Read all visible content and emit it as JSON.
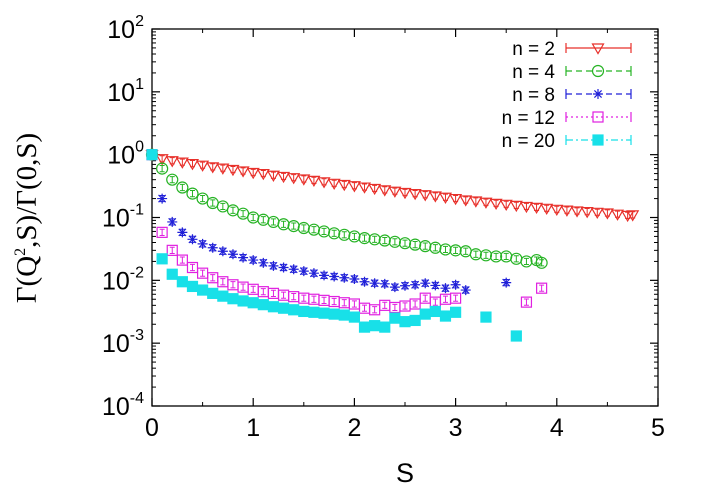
{
  "chart_data": {
    "type": "scatter",
    "title": "",
    "xlabel": "S",
    "ylabel": {
      "base": "Γ(Q",
      "sup": "2",
      "rest": ",S)/Γ(0,S)"
    },
    "xlim": [
      0,
      5
    ],
    "ylim_log10": [
      -4,
      2
    ],
    "yscale": "log",
    "grid": false,
    "legend_position": "top-right",
    "x_ticks": [
      "0",
      "1",
      "2",
      "3",
      "4",
      "5"
    ],
    "y_ticks": [
      {
        "exp": -4,
        "base": "10",
        "sup": "-4"
      },
      {
        "exp": -3,
        "base": "10",
        "sup": "-3"
      },
      {
        "exp": -2,
        "base": "10",
        "sup": "-2"
      },
      {
        "exp": -1,
        "base": "10",
        "sup": "-1"
      },
      {
        "exp": 0,
        "base": "10",
        "sup": "0"
      },
      {
        "exp": 1,
        "base": "10",
        "sup": "1"
      },
      {
        "exp": 2,
        "base": "10",
        "sup": "2"
      }
    ],
    "series": [
      {
        "name": "n = 2",
        "color": "#e8302a",
        "marker": "triangle-down",
        "line": "solid",
        "points": [
          [
            0.0,
            1.0
          ],
          [
            0.1,
            0.86
          ],
          [
            0.2,
            0.8
          ],
          [
            0.3,
            0.76
          ],
          [
            0.4,
            0.72
          ],
          [
            0.5,
            0.68
          ],
          [
            0.6,
            0.64
          ],
          [
            0.7,
            0.61
          ],
          [
            0.8,
            0.58
          ],
          [
            0.9,
            0.55
          ],
          [
            1.0,
            0.52
          ],
          [
            1.1,
            0.5
          ],
          [
            1.2,
            0.47
          ],
          [
            1.3,
            0.45
          ],
          [
            1.4,
            0.43
          ],
          [
            1.5,
            0.41
          ],
          [
            1.6,
            0.39
          ],
          [
            1.7,
            0.37
          ],
          [
            1.8,
            0.35
          ],
          [
            1.9,
            0.335
          ],
          [
            2.0,
            0.32
          ],
          [
            2.1,
            0.305
          ],
          [
            2.2,
            0.29
          ],
          [
            2.3,
            0.275
          ],
          [
            2.4,
            0.262
          ],
          [
            2.5,
            0.25
          ],
          [
            2.6,
            0.24
          ],
          [
            2.7,
            0.23
          ],
          [
            2.8,
            0.22
          ],
          [
            2.9,
            0.21
          ],
          [
            3.0,
            0.2
          ],
          [
            3.1,
            0.19
          ],
          [
            3.2,
            0.183
          ],
          [
            3.3,
            0.175
          ],
          [
            3.4,
            0.168
          ],
          [
            3.5,
            0.162
          ],
          [
            3.6,
            0.156
          ],
          [
            3.7,
            0.15
          ],
          [
            3.8,
            0.145
          ],
          [
            3.9,
            0.14
          ],
          [
            4.0,
            0.135
          ],
          [
            4.1,
            0.131
          ],
          [
            4.2,
            0.127
          ],
          [
            4.3,
            0.124
          ],
          [
            4.4,
            0.121
          ],
          [
            4.5,
            0.118
          ],
          [
            4.6,
            0.113
          ],
          [
            4.7,
            0.108
          ],
          [
            4.75,
            0.11
          ]
        ]
      },
      {
        "name": "n = 4",
        "color": "#26b324",
        "marker": "circle",
        "line": "dashed",
        "points": [
          [
            0.0,
            1.0
          ],
          [
            0.1,
            0.6
          ],
          [
            0.2,
            0.4
          ],
          [
            0.3,
            0.3
          ],
          [
            0.4,
            0.24
          ],
          [
            0.5,
            0.2
          ],
          [
            0.6,
            0.17
          ],
          [
            0.7,
            0.15
          ],
          [
            0.8,
            0.13
          ],
          [
            0.9,
            0.115
          ],
          [
            1.0,
            0.1
          ],
          [
            1.1,
            0.092
          ],
          [
            1.2,
            0.085
          ],
          [
            1.3,
            0.078
          ],
          [
            1.4,
            0.073
          ],
          [
            1.5,
            0.068
          ],
          [
            1.6,
            0.064
          ],
          [
            1.7,
            0.06
          ],
          [
            1.8,
            0.056
          ],
          [
            1.9,
            0.053
          ],
          [
            2.0,
            0.05
          ],
          [
            2.1,
            0.047
          ],
          [
            2.2,
            0.045
          ],
          [
            2.3,
            0.043
          ],
          [
            2.4,
            0.041
          ],
          [
            2.5,
            0.039
          ],
          [
            2.6,
            0.037
          ],
          [
            2.7,
            0.035
          ],
          [
            2.8,
            0.033
          ],
          [
            2.9,
            0.031
          ],
          [
            3.0,
            0.03
          ],
          [
            3.1,
            0.029
          ],
          [
            3.2,
            0.026
          ],
          [
            3.3,
            0.025
          ],
          [
            3.4,
            0.024
          ],
          [
            3.5,
            0.024
          ],
          [
            3.6,
            0.022
          ],
          [
            3.7,
            0.02
          ],
          [
            3.8,
            0.021
          ],
          [
            3.85,
            0.019
          ]
        ]
      },
      {
        "name": "n = 8",
        "color": "#2020d8",
        "marker": "asterisk",
        "line": "dashed",
        "points": [
          [
            0.0,
            1.0
          ],
          [
            0.1,
            0.2
          ],
          [
            0.2,
            0.085
          ],
          [
            0.3,
            0.058
          ],
          [
            0.4,
            0.045
          ],
          [
            0.5,
            0.038
          ],
          [
            0.6,
            0.033
          ],
          [
            0.7,
            0.029
          ],
          [
            0.8,
            0.026
          ],
          [
            0.9,
            0.023
          ],
          [
            1.0,
            0.021
          ],
          [
            1.1,
            0.019
          ],
          [
            1.2,
            0.017
          ],
          [
            1.3,
            0.016
          ],
          [
            1.4,
            0.015
          ],
          [
            1.5,
            0.014
          ],
          [
            1.6,
            0.013
          ],
          [
            1.7,
            0.012
          ],
          [
            1.8,
            0.0115
          ],
          [
            1.9,
            0.011
          ],
          [
            2.0,
            0.0105
          ],
          [
            2.1,
            0.0095
          ],
          [
            2.2,
            0.009
          ],
          [
            2.3,
            0.0088
          ],
          [
            2.4,
            0.0078
          ],
          [
            2.5,
            0.0082
          ],
          [
            2.6,
            0.0085
          ],
          [
            2.7,
            0.009
          ],
          [
            2.8,
            0.0083
          ],
          [
            2.9,
            0.0075
          ],
          [
            3.0,
            0.0085
          ],
          [
            3.1,
            0.007
          ],
          [
            3.5,
            0.0092
          ]
        ]
      },
      {
        "name": "n = 12",
        "color": "#e020e0",
        "marker": "square",
        "line": "dotted",
        "points": [
          [
            0.0,
            1.0
          ],
          [
            0.1,
            0.058
          ],
          [
            0.2,
            0.03
          ],
          [
            0.3,
            0.021
          ],
          [
            0.4,
            0.016
          ],
          [
            0.5,
            0.013
          ],
          [
            0.6,
            0.011
          ],
          [
            0.7,
            0.0095
          ],
          [
            0.8,
            0.0085
          ],
          [
            0.9,
            0.0078
          ],
          [
            1.0,
            0.0072
          ],
          [
            1.1,
            0.0066
          ],
          [
            1.2,
            0.0062
          ],
          [
            1.3,
            0.0058
          ],
          [
            1.4,
            0.0055
          ],
          [
            1.5,
            0.0052
          ],
          [
            1.6,
            0.005
          ],
          [
            1.7,
            0.0048
          ],
          [
            1.8,
            0.0046
          ],
          [
            1.9,
            0.0044
          ],
          [
            2.0,
            0.0042
          ],
          [
            2.1,
            0.0036
          ],
          [
            2.2,
            0.0034
          ],
          [
            2.3,
            0.004
          ],
          [
            2.4,
            0.0037
          ],
          [
            2.5,
            0.0039
          ],
          [
            2.6,
            0.0042
          ],
          [
            2.7,
            0.0052
          ],
          [
            2.8,
            0.0045
          ],
          [
            2.9,
            0.005
          ],
          [
            3.0,
            0.0052
          ],
          [
            3.7,
            0.0045
          ],
          [
            3.85,
            0.0075
          ]
        ]
      },
      {
        "name": "n = 20",
        "color": "#18e0e8",
        "marker": "filled-square",
        "line": "dashdot",
        "points": [
          [
            0.0,
            1.0
          ],
          [
            0.1,
            0.022
          ],
          [
            0.2,
            0.0125
          ],
          [
            0.3,
            0.0095
          ],
          [
            0.4,
            0.008
          ],
          [
            0.5,
            0.007
          ],
          [
            0.6,
            0.0062
          ],
          [
            0.7,
            0.0056
          ],
          [
            0.8,
            0.0051
          ],
          [
            0.9,
            0.0047
          ],
          [
            1.0,
            0.0044
          ],
          [
            1.1,
            0.0041
          ],
          [
            1.2,
            0.0038
          ],
          [
            1.3,
            0.0036
          ],
          [
            1.4,
            0.0034
          ],
          [
            1.5,
            0.0032
          ],
          [
            1.6,
            0.0031
          ],
          [
            1.7,
            0.003
          ],
          [
            1.8,
            0.0029
          ],
          [
            1.9,
            0.0028
          ],
          [
            2.0,
            0.0026
          ],
          [
            2.1,
            0.0018
          ],
          [
            2.2,
            0.0019
          ],
          [
            2.3,
            0.0018
          ],
          [
            2.4,
            0.0025
          ],
          [
            2.5,
            0.0022
          ],
          [
            2.6,
            0.0023
          ],
          [
            2.7,
            0.0029
          ],
          [
            2.8,
            0.0032
          ],
          [
            2.9,
            0.0027
          ],
          [
            3.0,
            0.0031
          ],
          [
            3.3,
            0.0026
          ],
          [
            3.6,
            0.0013
          ]
        ]
      }
    ]
  }
}
